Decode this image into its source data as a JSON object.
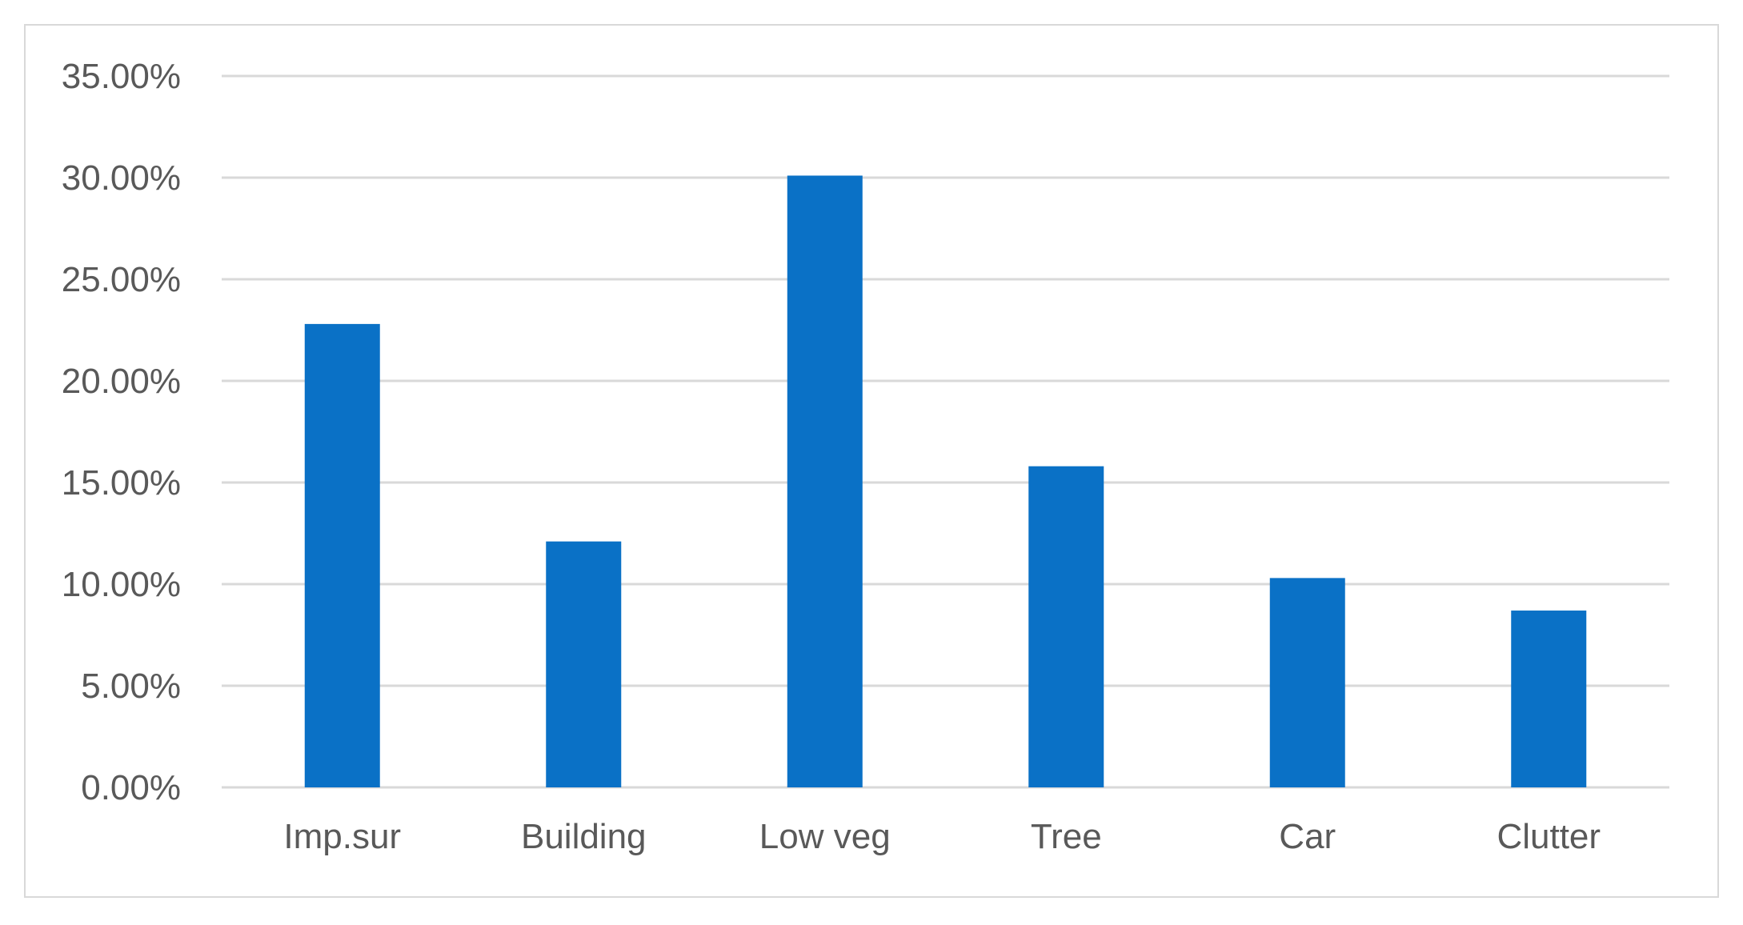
{
  "chart_data": {
    "type": "bar",
    "categories": [
      "Imp.sur",
      "Building",
      "Low veg",
      "Tree",
      "Car",
      "Clutter"
    ],
    "values": [
      22.8,
      12.1,
      30.1,
      15.8,
      10.3,
      8.7
    ],
    "ylim": [
      0,
      35
    ],
    "yticks": [
      0,
      5,
      10,
      15,
      20,
      25,
      30,
      35
    ],
    "ytick_labels": [
      "0.00%",
      "5.00%",
      "10.00%",
      "15.00%",
      "20.00%",
      "25.00%",
      "30.00%",
      "35.00%"
    ],
    "title": "",
    "xlabel": "",
    "ylabel": "",
    "grid": true,
    "legend": "none",
    "bar_color": "#0a71c6",
    "grid_color": "#d9d9d9",
    "text_color": "#595959"
  }
}
